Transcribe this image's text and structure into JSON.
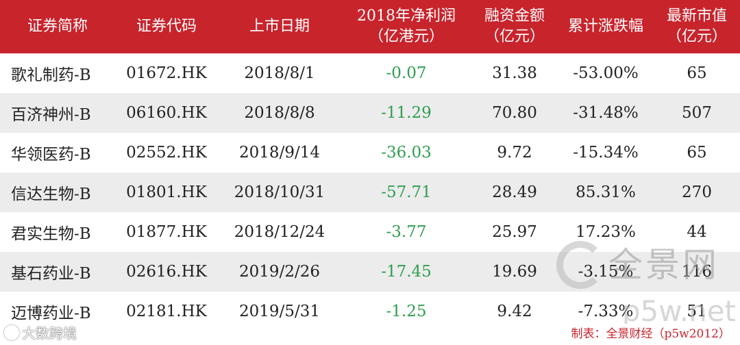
{
  "table": {
    "headers": [
      [
        "证券简称"
      ],
      [
        "证券代码"
      ],
      [
        "上市日期"
      ],
      [
        "2018年净利润",
        "（亿港元）"
      ],
      [
        "融资金额",
        "（亿元）"
      ],
      [
        "累计涨跌幅"
      ],
      [
        "最新市值",
        "（亿元）"
      ]
    ],
    "rows": [
      [
        "歌礼制药-B",
        "01672.HK",
        "2018/8/1",
        "-0.07",
        "31.38",
        "-53.00%",
        "65"
      ],
      [
        "百济神州-B",
        "06160.HK",
        "2018/8/8",
        "-11.29",
        "70.80",
        "-31.48%",
        "507"
      ],
      [
        "华领医药-B",
        "02552.HK",
        "2018/9/14",
        "-36.03",
        "9.72",
        "-15.34%",
        "65"
      ],
      [
        "信达生物-B",
        "01801.HK",
        "2018/10/31",
        "-57.71",
        "28.49",
        "85.31%",
        "270"
      ],
      [
        "君实生物-B",
        "01877.HK",
        "2018/12/24",
        "-3.77",
        "25.97",
        "17.23%",
        "44"
      ],
      [
        "基石药业-B",
        "02616.HK",
        "2019/2/26",
        "-17.45",
        "19.69",
        "-3.15%",
        "116"
      ],
      [
        "迈博药业-B",
        "02181.HK",
        "2019/5/31",
        "-1.25",
        "9.42",
        "-7.33%",
        "51"
      ]
    ]
  },
  "watermark": {
    "text": "全景网",
    "url": "p5w.net"
  },
  "corner_mark": "大数跨境",
  "credit": "制表：全景财经（p5w2012）",
  "colors": {
    "header_bg": "#c8242c",
    "header_text": "#ffffff",
    "stripe": "#ececec",
    "profit_text": "#2e9e4f",
    "credit_text": "#c8242c"
  }
}
